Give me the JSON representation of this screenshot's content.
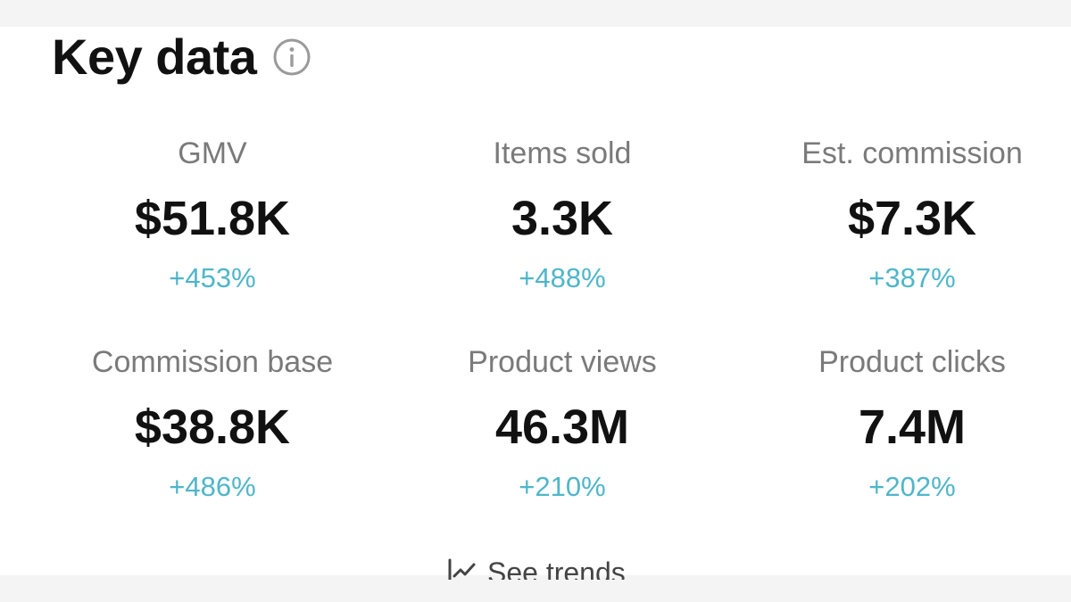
{
  "header": {
    "title": "Key data",
    "info_icon": "info-circle-icon"
  },
  "metrics": [
    {
      "label": "GMV",
      "value": "$51.8K",
      "change": "+453%"
    },
    {
      "label": "Items sold",
      "value": "3.3K",
      "change": "+488%"
    },
    {
      "label": "Est. commission",
      "value": "$7.3K",
      "change": "+387%"
    },
    {
      "label": "Commission base",
      "value": "$38.8K",
      "change": "+486%"
    },
    {
      "label": "Product views",
      "value": "46.3M",
      "change": "+210%"
    },
    {
      "label": "Product clicks",
      "value": "7.4M",
      "change": "+202%"
    }
  ],
  "trends": {
    "label": "See trends",
    "icon": "trend-line-icon"
  },
  "colors": {
    "change_positive": "#4fb6c9",
    "value_text": "#111111",
    "label_text": "#7a7a7a"
  }
}
